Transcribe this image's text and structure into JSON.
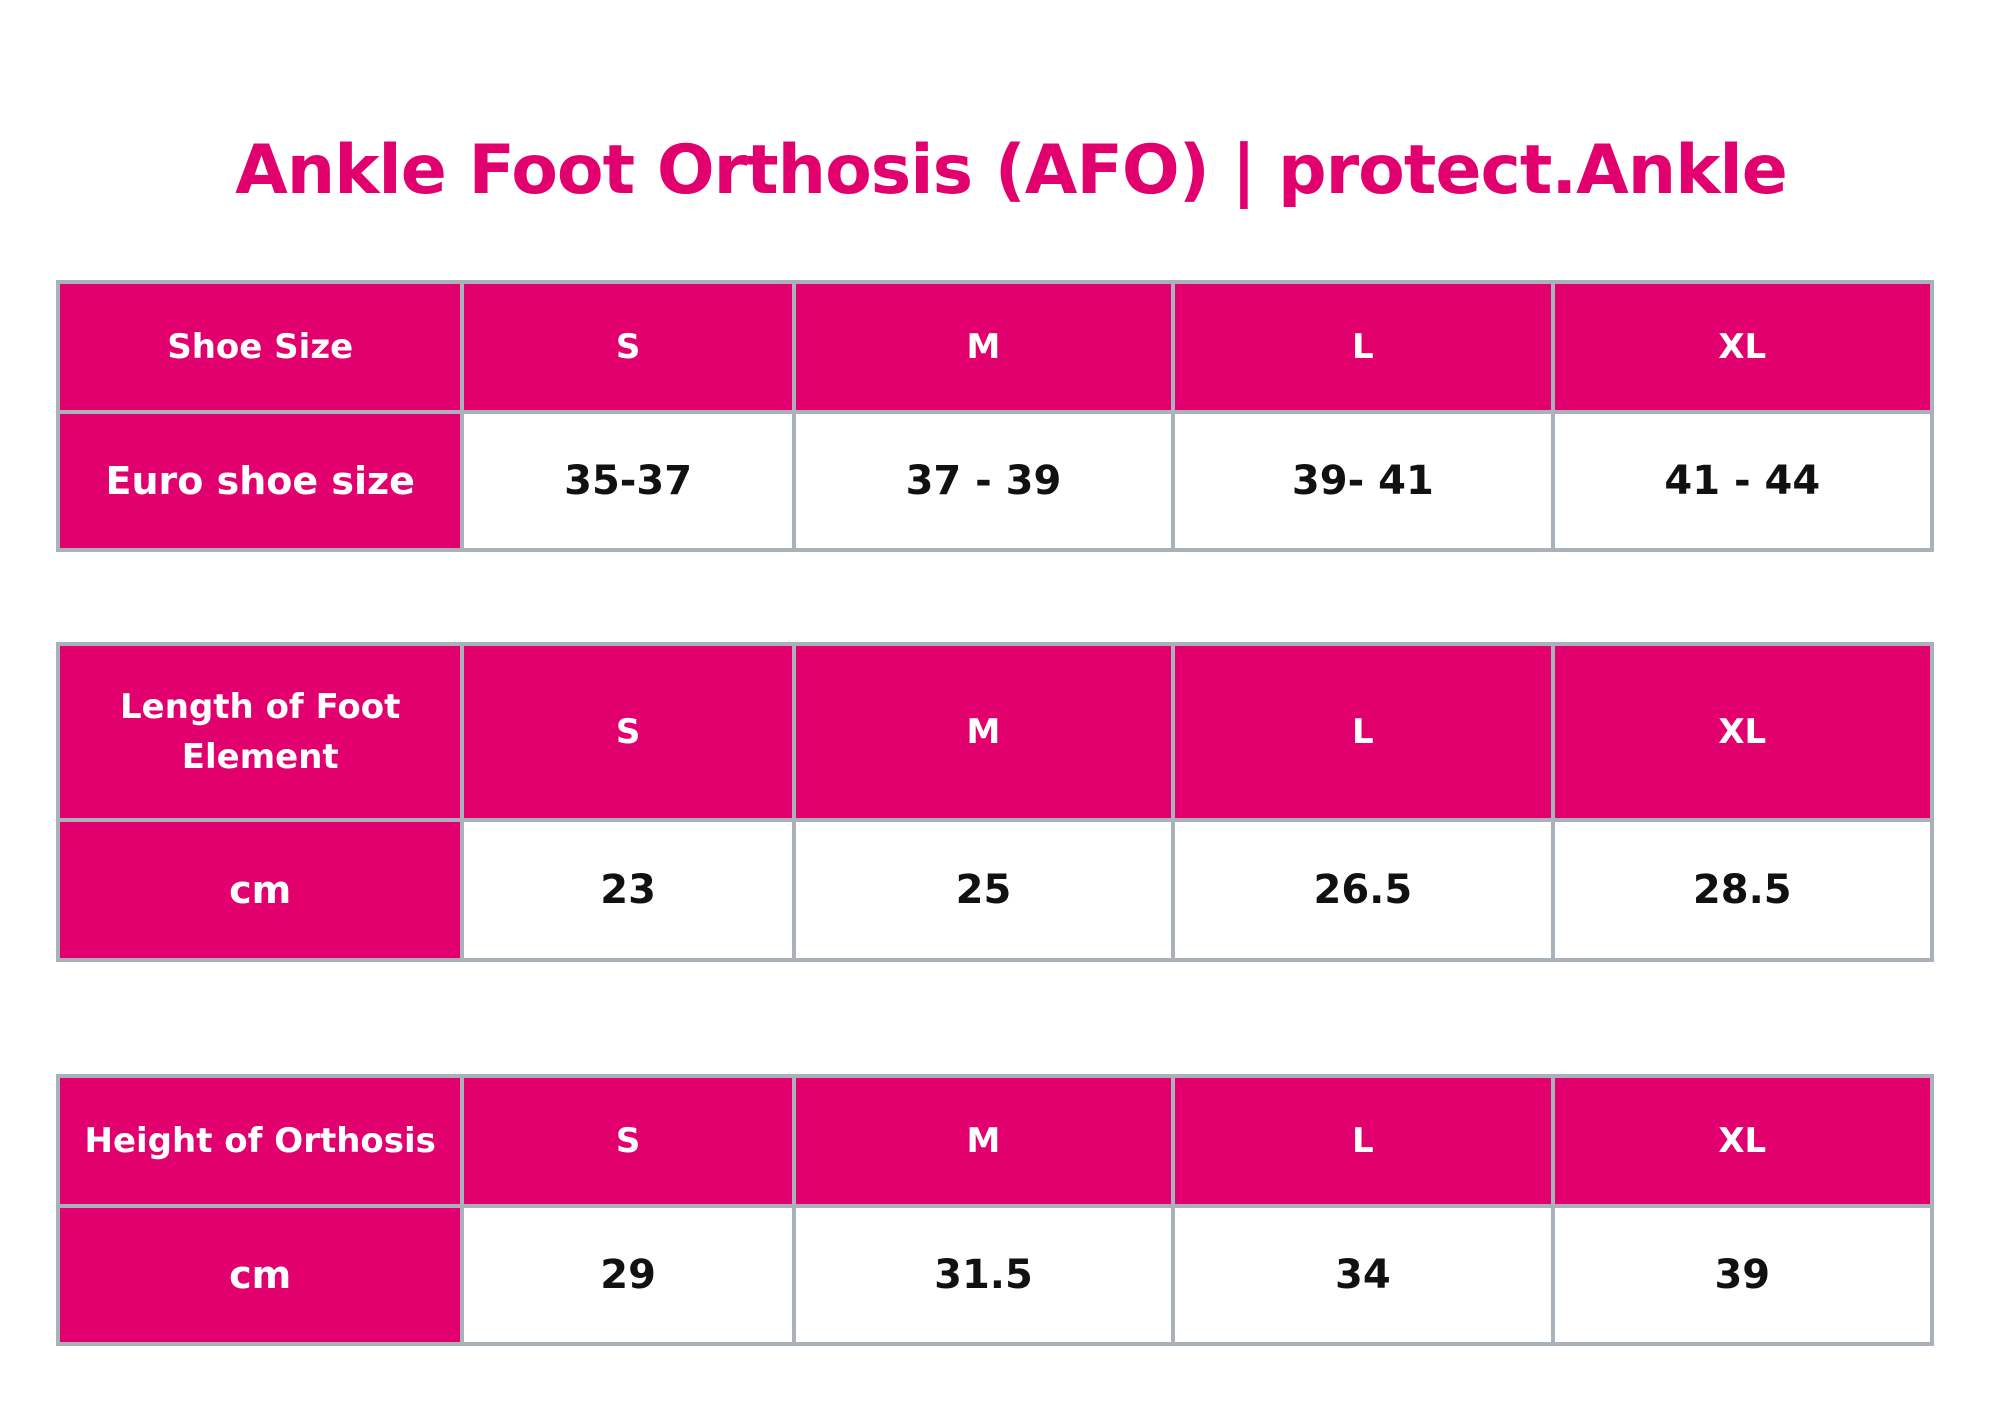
{
  "title": "Ankle Foot Orthosis (AFO) | protect.Ankle",
  "colors": {
    "accent": "#e2006f",
    "border": "#a9b2ba",
    "header_text": "#ffffff",
    "value_text": "#111111"
  },
  "tables": [
    {
      "header_label": "Shoe Size",
      "sizes": [
        "S",
        "M",
        "L",
        "XL"
      ],
      "row_label": "Euro shoe size",
      "values": [
        "35-37",
        "37 - 39",
        "39- 41",
        "41 - 44"
      ]
    },
    {
      "header_label": "Length of Foot Element",
      "sizes": [
        "S",
        "M",
        "L",
        "XL"
      ],
      "row_label": "cm",
      "values": [
        "23",
        "25",
        "26.5",
        "28.5"
      ]
    },
    {
      "header_label": "Height of Orthosis",
      "sizes": [
        "S",
        "M",
        "L",
        "XL"
      ],
      "row_label": "cm",
      "values": [
        "29",
        "31.5",
        "34",
        "39"
      ]
    }
  ]
}
